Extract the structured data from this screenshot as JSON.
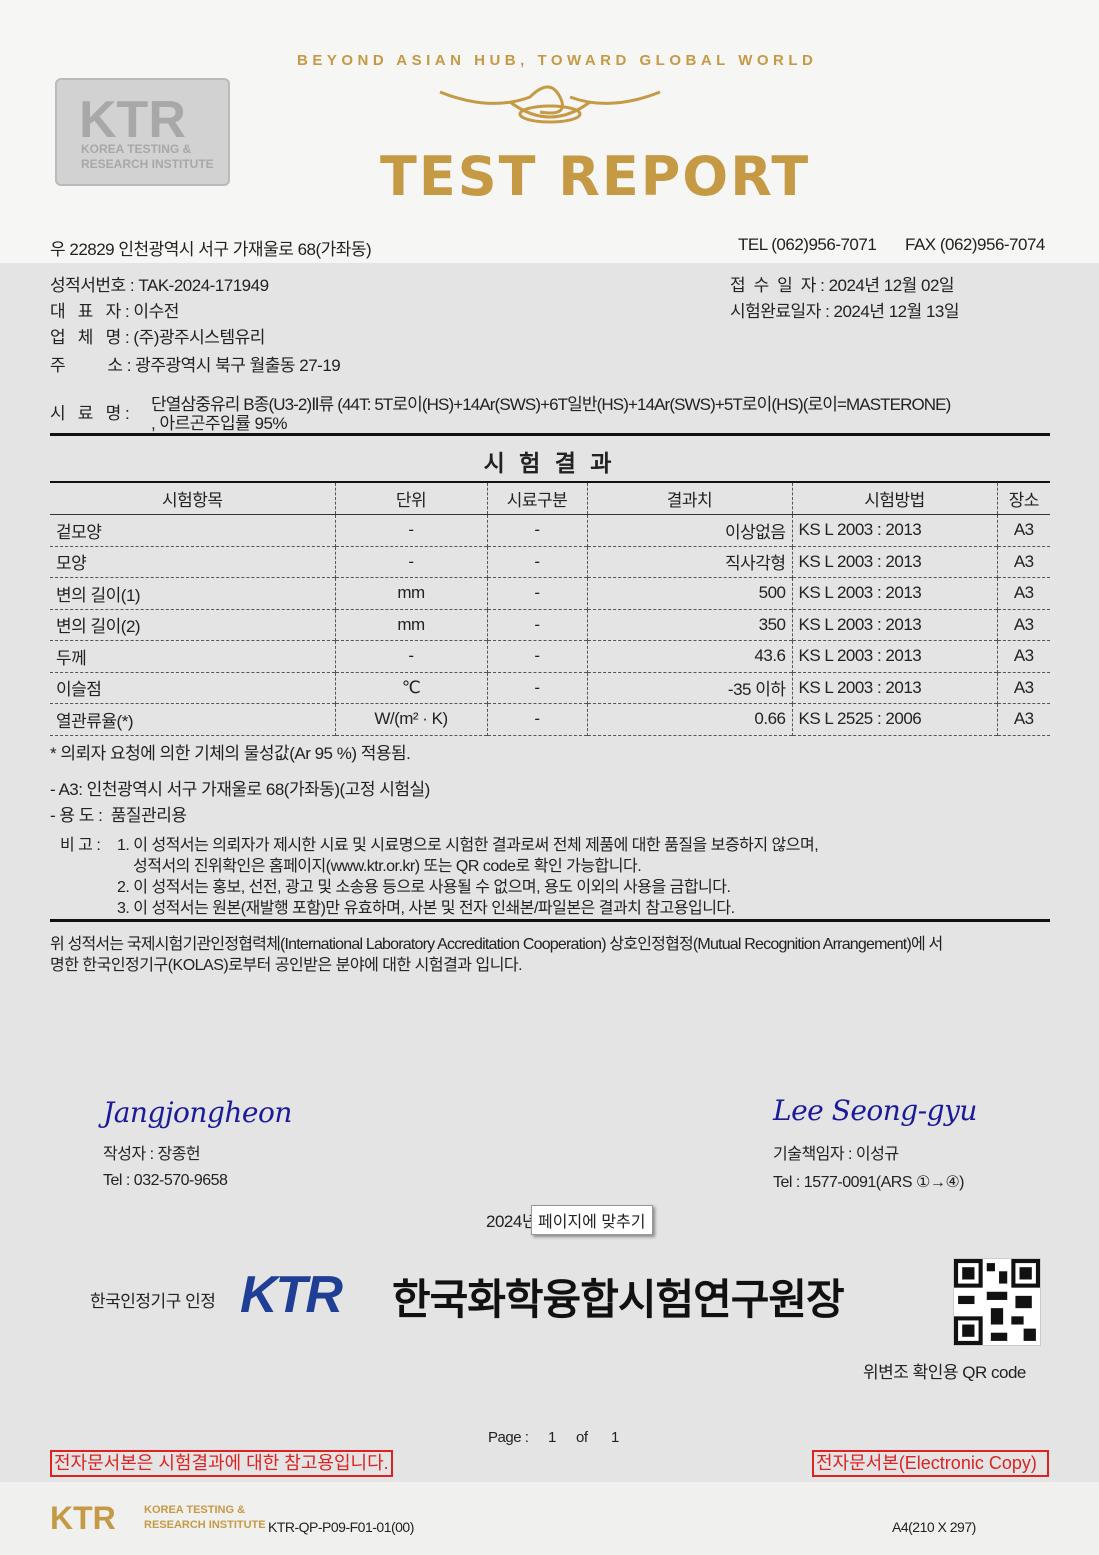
{
  "header": {
    "slogan": "BEYOND ASIAN HUB, TOWARD GLOBAL WORLD",
    "title": "TEST REPORT",
    "logo_text": "KTR",
    "logo_sub1": "KOREA TESTING &",
    "logo_sub2": "RESEARCH INSTITUTE",
    "address": "우 22829 인천광역시 서구 가재울로 68(가좌동)",
    "tel": "TEL (062)956-7071",
    "fax": "FAX (062)956-7074"
  },
  "info": {
    "report_no": "성적서번호 : TAK-2024-171949",
    "representative": "대   표   자 : 이수전",
    "company": "업   체   명 : (주)광주시스템유리",
    "address": "주          소 : 광주광역시 북구 월출동 27-19",
    "received": "접  수  일  자 : 2024년 12월 02일",
    "completed": "시험완료일자 : 2024년 12월 13일",
    "sample_label": "시   료   명 :",
    "sample_line1": "단열삼중유리 B종(U3-2)Ⅱ류 (44T: 5T로이(HS)+14Ar(SWS)+6T일반(HS)+14Ar(SWS)+5T로이(HS)(로이=MASTERONE)",
    "sample_line2": ", 아르곤주입률 95%"
  },
  "results": {
    "title": "시 험 결 과",
    "columns": [
      "시험항목",
      "단위",
      "시료구분",
      "결과치",
      "시험방법",
      "장소"
    ],
    "rows": [
      [
        "겉모양",
        "-",
        "-",
        "이상없음",
        "KS L 2003 : 2013",
        "A3"
      ],
      [
        "모양",
        "-",
        "-",
        "직사각형",
        "KS L 2003 : 2013",
        "A3"
      ],
      [
        "변의 길이(1)",
        "mm",
        "-",
        "500",
        "KS L 2003 : 2013",
        "A3"
      ],
      [
        "변의 길이(2)",
        "mm",
        "-",
        "350",
        "KS L 2003 : 2013",
        "A3"
      ],
      [
        "두께",
        "-",
        "-",
        "43.6",
        "KS L 2003 : 2013",
        "A3"
      ],
      [
        "이슬점",
        "℃",
        "-",
        "-35 이하",
        "KS L 2003 : 2013",
        "A3"
      ],
      [
        "열관류율(*)",
        "W/(m² · K)",
        "-",
        "0.66",
        "KS L 2525 : 2006",
        "A3"
      ]
    ],
    "footnote": "* 의뢰자 요청에 의한 기체의 물성값(Ar 95 %) 적용됨."
  },
  "notes": {
    "location": "- A3: 인천광역시 서구 가재울로 68(가좌동)(고정 시험실)",
    "purpose": "- 용 도 :  품질관리용",
    "remarks_label": "비 고 :",
    "remarks": [
      "1. 이 성적서는 의뢰자가 제시한 시료 및 시료명으로 시험한 결과로써 전체 제품에 대한 품질을 보증하지 않으며,",
      "성적서의 진위확인은 홈페이지(www.ktr.or.kr) 또는 QR code로 확인 가능합니다.",
      "2. 이 성적서는 홍보, 선전, 광고 및 소송용 등으로 사용될 수 없으며, 용도 이외의 사용을 금합니다.",
      "3. 이 성적서는 원본(재발행 포함)만 유효하며, 사본 및 전자 인쇄본/파일본은 결과치 참고용입니다."
    ],
    "accreditation1": "위 성적서는 국제시험기관인정협력체(International Laboratory Accreditation Cooperation) 상호인정협정(Mutual Recognition Arrangement)에 서",
    "accreditation2": "명한 한국인정기구(KOLAS)로부터 공인받은 분야에 대한 시험결과 입니다."
  },
  "signatures": {
    "left_sig": "Jangjongheon",
    "left_name": "작성자 : 장종헌",
    "left_tel": "Tel : 032-570-9658",
    "right_sig": "Lee Seong-gyu",
    "right_name": "기술책임자 : 이성규",
    "right_tel": "Tel : 1577-0091(ARS ①→④)"
  },
  "date_partial": "2024년",
  "tooltip": "페이지에 맞추기",
  "issuer": {
    "kolas": "한국인정기구 인정",
    "logo": "KTR",
    "name": "한국화학융합시험연구원장",
    "qr_label": "위변조 확인용  QR code"
  },
  "page": {
    "label": "Page :",
    "current": "1",
    "of": "of",
    "total": "1"
  },
  "stamps": {
    "left": "전자문서본은 시험결과에 대한 참고용입니다.",
    "right": "전자문서본(Electronic Copy)"
  },
  "footer": {
    "logo": "KTR",
    "sub1": "KOREA TESTING &",
    "sub2": "RESEARCH INSTITUTE",
    "form_code": "KTR-QP-P09-F01-01(00)",
    "paper": "A4(210 X 297)"
  },
  "colors": {
    "gold": "#c69a45",
    "navy": "#1f3e95",
    "red": "#d22222",
    "signature": "#1b1b9a"
  }
}
